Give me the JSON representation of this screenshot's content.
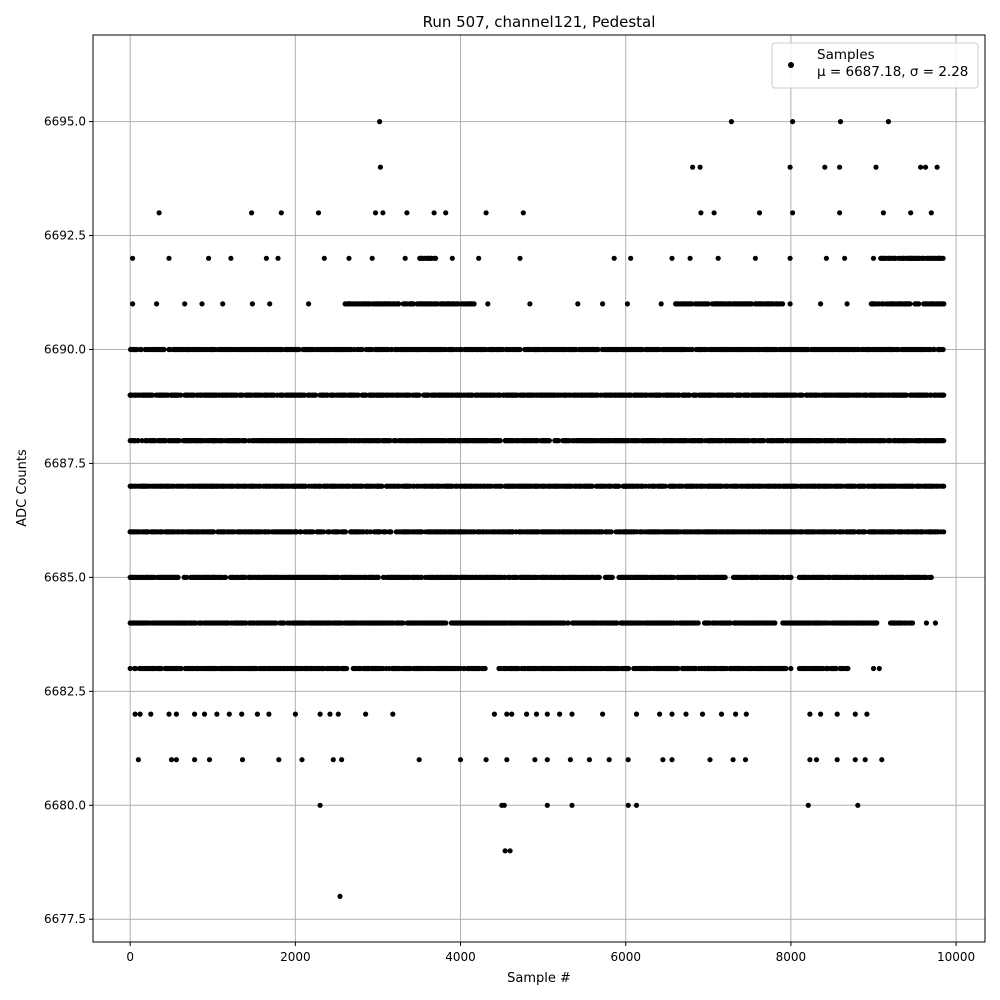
{
  "chart_data": {
    "type": "scatter",
    "title": "Run 507, channel121, Pedestal",
    "xlabel": "Sample #",
    "ylabel": "ADC Counts",
    "xlim": [
      -450,
      10350
    ],
    "ylim": [
      6677.0,
      6696.9
    ],
    "xticks": [
      0,
      2000,
      4000,
      6000,
      8000,
      10000
    ],
    "yticks": [
      6677.5,
      6680.0,
      6682.5,
      6685.0,
      6687.5,
      6690.0,
      6692.5,
      6695.0
    ],
    "xtick_labels": [
      "0",
      "2000",
      "4000",
      "6000",
      "8000",
      "10000"
    ],
    "ytick_labels": [
      "6677.5",
      "6680.0",
      "6682.5",
      "6685.0",
      "6687.5",
      "6690.0",
      "6692.5",
      "6695.0"
    ],
    "grid": true,
    "legend_position": "top-right",
    "series": [
      {
        "name": "Samples",
        "label_line2": "μ = 6687.18, σ = 2.28",
        "color": "#000000",
        "marker": "circle",
        "description_of_values": "~9850 samples at integer ADC values 6678–6695; dense bands 6684–6689",
        "points": [
          [
            2540,
            6678
          ],
          [
            4540,
            6679
          ],
          [
            4600,
            6679
          ],
          [
            2300,
            6680
          ],
          [
            4500,
            6680
          ],
          [
            4530,
            6680
          ],
          [
            5050,
            6680
          ],
          [
            5350,
            6680
          ],
          [
            6030,
            6680
          ],
          [
            6130,
            6680
          ],
          [
            8210,
            6680
          ],
          [
            8810,
            6680
          ],
          [
            100,
            6681
          ],
          [
            500,
            6681
          ],
          [
            560,
            6681
          ],
          [
            780,
            6681
          ],
          [
            960,
            6681
          ],
          [
            1360,
            6681
          ],
          [
            1800,
            6681
          ],
          [
            2080,
            6681
          ],
          [
            2460,
            6681
          ],
          [
            2560,
            6681
          ],
          [
            3500,
            6681
          ],
          [
            4000,
            6681
          ],
          [
            4310,
            6681
          ],
          [
            4560,
            6681
          ],
          [
            4900,
            6681
          ],
          [
            5050,
            6681
          ],
          [
            5330,
            6681
          ],
          [
            5560,
            6681
          ],
          [
            5800,
            6681
          ],
          [
            6030,
            6681
          ],
          [
            6450,
            6681
          ],
          [
            6560,
            6681
          ],
          [
            7020,
            6681
          ],
          [
            7300,
            6681
          ],
          [
            7450,
            6681
          ],
          [
            8230,
            6681
          ],
          [
            8310,
            6681
          ],
          [
            8560,
            6681
          ],
          [
            8780,
            6681
          ],
          [
            8900,
            6681
          ],
          [
            9100,
            6681
          ],
          [
            60,
            6682
          ],
          [
            120,
            6682
          ],
          [
            250,
            6682
          ],
          [
            470,
            6682
          ],
          [
            560,
            6682
          ],
          [
            780,
            6682
          ],
          [
            900,
            6682
          ],
          [
            1050,
            6682
          ],
          [
            1200,
            6682
          ],
          [
            1350,
            6682
          ],
          [
            1540,
            6682
          ],
          [
            1680,
            6682
          ],
          [
            2000,
            6682
          ],
          [
            2300,
            6682
          ],
          [
            2420,
            6682
          ],
          [
            2520,
            6682
          ],
          [
            2850,
            6682
          ],
          [
            3180,
            6682
          ],
          [
            4410,
            6682
          ],
          [
            4560,
            6682
          ],
          [
            4620,
            6682
          ],
          [
            4800,
            6682
          ],
          [
            4920,
            6682
          ],
          [
            5050,
            6682
          ],
          [
            5200,
            6682
          ],
          [
            5350,
            6682
          ],
          [
            5720,
            6682
          ],
          [
            6130,
            6682
          ],
          [
            6410,
            6682
          ],
          [
            6560,
            6682
          ],
          [
            6730,
            6682
          ],
          [
            6930,
            6682
          ],
          [
            7160,
            6682
          ],
          [
            7330,
            6682
          ],
          [
            7460,
            6682
          ],
          [
            8230,
            6682
          ],
          [
            8360,
            6682
          ],
          [
            8560,
            6682
          ],
          [
            8780,
            6682
          ],
          [
            8920,
            6682
          ],
          [
            9000,
            6683
          ],
          [
            9070,
            6683
          ],
          [
            9640,
            6684
          ],
          [
            9750,
            6684
          ],
          [
            8600,
            6695
          ],
          [
            9180,
            6695
          ],
          [
            3020,
            6695
          ],
          [
            7280,
            6695
          ],
          [
            8020,
            6695
          ],
          [
            3030,
            6694
          ],
          [
            6810,
            6694
          ],
          [
            6900,
            6694
          ],
          [
            7990,
            6694
          ],
          [
            8410,
            6694
          ],
          [
            8590,
            6694
          ],
          [
            9030,
            6694
          ],
          [
            9570,
            6694
          ],
          [
            9630,
            6694
          ],
          [
            9770,
            6694
          ],
          [
            350,
            6693
          ],
          [
            1470,
            6693
          ],
          [
            1830,
            6693
          ],
          [
            2280,
            6693
          ],
          [
            2970,
            6693
          ],
          [
            3060,
            6693
          ],
          [
            3350,
            6693
          ],
          [
            3680,
            6693
          ],
          [
            3820,
            6693
          ],
          [
            4310,
            6693
          ],
          [
            4760,
            6693
          ],
          [
            6910,
            6693
          ],
          [
            7070,
            6693
          ],
          [
            7620,
            6693
          ],
          [
            8020,
            6693
          ],
          [
            8590,
            6693
          ],
          [
            9120,
            6693
          ],
          [
            9450,
            6693
          ],
          [
            9700,
            6693
          ],
          [
            30,
            6692
          ],
          [
            470,
            6692
          ],
          [
            950,
            6692
          ],
          [
            1220,
            6692
          ],
          [
            1650,
            6692
          ],
          [
            1790,
            6692
          ],
          [
            2350,
            6692
          ],
          [
            2650,
            6692
          ],
          [
            2930,
            6692
          ],
          [
            3330,
            6692
          ],
          [
            3650,
            6692
          ],
          [
            3900,
            6692
          ],
          [
            4220,
            6692
          ],
          [
            4720,
            6692
          ],
          [
            5860,
            6692
          ],
          [
            6060,
            6692
          ],
          [
            6560,
            6692
          ],
          [
            6780,
            6692
          ],
          [
            7120,
            6692
          ],
          [
            7570,
            6692
          ],
          [
            7990,
            6692
          ],
          [
            8430,
            6692
          ],
          [
            8650,
            6692
          ],
          [
            9000,
            6692
          ],
          [
            9450,
            6692
          ],
          [
            9800,
            6692
          ],
          [
            30,
            6691
          ],
          [
            320,
            6691
          ],
          [
            660,
            6691
          ],
          [
            870,
            6691
          ],
          [
            1120,
            6691
          ],
          [
            1480,
            6691
          ],
          [
            1690,
            6691
          ],
          [
            2160,
            6691
          ],
          [
            2650,
            6691
          ],
          [
            3050,
            6691
          ],
          [
            3400,
            6691
          ],
          [
            3850,
            6691
          ],
          [
            4100,
            6691
          ],
          [
            4330,
            6691
          ],
          [
            4840,
            6691
          ],
          [
            5420,
            6691
          ],
          [
            5720,
            6691
          ],
          [
            6020,
            6691
          ],
          [
            6430,
            6691
          ],
          [
            6800,
            6691
          ],
          [
            7100,
            6691
          ],
          [
            7570,
            6691
          ],
          [
            7990,
            6691
          ],
          [
            8360,
            6691
          ],
          [
            8680,
            6691
          ],
          [
            9000,
            6691
          ],
          [
            9400,
            6691
          ],
          [
            9800,
            6691
          ],
          [
            50,
            6690
          ],
          [
            400,
            6690
          ],
          [
            800,
            6690
          ],
          [
            1150,
            6690
          ],
          [
            1500,
            6690
          ],
          [
            2000,
            6690
          ],
          [
            2500,
            6690
          ],
          [
            3000,
            6690
          ],
          [
            3500,
            6690
          ],
          [
            4000,
            6690
          ],
          [
            4450,
            6690
          ],
          [
            4900,
            6690
          ],
          [
            5350,
            6690
          ],
          [
            5800,
            6690
          ],
          [
            6250,
            6690
          ],
          [
            6700,
            6690
          ],
          [
            7200,
            6690
          ],
          [
            7700,
            6690
          ],
          [
            8200,
            6690
          ],
          [
            8700,
            6690
          ],
          [
            9200,
            6690
          ],
          [
            9800,
            6690
          ],
          [
            0,
            6689
          ],
          [
            500,
            6689
          ],
          [
            1000,
            6689
          ],
          [
            2000,
            6689
          ],
          [
            3000,
            6689
          ],
          [
            4000,
            6689
          ],
          [
            5000,
            6689
          ],
          [
            6000,
            6689
          ],
          [
            7000,
            6689
          ],
          [
            8000,
            6689
          ],
          [
            9000,
            6689
          ],
          [
            9850,
            6689
          ],
          [
            0,
            6688
          ],
          [
            1000,
            6688
          ],
          [
            2000,
            6688
          ],
          [
            3000,
            6688
          ],
          [
            4000,
            6688
          ],
          [
            5000,
            6688
          ],
          [
            6000,
            6688
          ],
          [
            7000,
            6688
          ],
          [
            8000,
            6688
          ],
          [
            9000,
            6688
          ],
          [
            9850,
            6688
          ],
          [
            0,
            6687
          ],
          [
            1000,
            6687
          ],
          [
            2000,
            6687
          ],
          [
            3000,
            6687
          ],
          [
            4000,
            6687
          ],
          [
            5000,
            6687
          ],
          [
            6000,
            6687
          ],
          [
            7000,
            6687
          ],
          [
            8000,
            6687
          ],
          [
            9000,
            6687
          ],
          [
            9850,
            6687
          ],
          [
            0,
            6686
          ],
          [
            1000,
            6686
          ],
          [
            2000,
            6686
          ],
          [
            3000,
            6686
          ],
          [
            4000,
            6686
          ],
          [
            5000,
            6686
          ],
          [
            6000,
            6686
          ],
          [
            7000,
            6686
          ],
          [
            8000,
            6686
          ],
          [
            9000,
            6686
          ],
          [
            9850,
            6686
          ],
          [
            0,
            6685
          ],
          [
            1000,
            6685
          ],
          [
            2000,
            6685
          ],
          [
            3000,
            6685
          ],
          [
            4000,
            6685
          ],
          [
            5000,
            6685
          ],
          [
            6000,
            6685
          ],
          [
            7000,
            6685
          ],
          [
            8000,
            6685
          ],
          [
            9000,
            6685
          ],
          [
            9700,
            6685
          ],
          [
            0,
            6684
          ],
          [
            1000,
            6684
          ],
          [
            2000,
            6684
          ],
          [
            3000,
            6684
          ],
          [
            4000,
            6684
          ],
          [
            5000,
            6684
          ],
          [
            6000,
            6684
          ],
          [
            7000,
            6684
          ],
          [
            8000,
            6684
          ],
          [
            9000,
            6684
          ],
          [
            0,
            6683
          ],
          [
            1000,
            6683
          ],
          [
            2000,
            6683
          ],
          [
            3000,
            6683
          ],
          [
            4000,
            6683
          ],
          [
            5000,
            6683
          ],
          [
            6000,
            6683
          ],
          [
            7000,
            6683
          ],
          [
            8000,
            6683
          ],
          [
            8500,
            6683
          ]
        ],
        "band_occupancy": {
          "6683": [
            [
              50,
              2620
            ],
            [
              2700,
              4300
            ],
            [
              4400,
              7950
            ],
            [
              8100,
              8700
            ]
          ],
          "6684": [
            [
              0,
              6880
            ],
            [
              6950,
              7820
            ],
            [
              7900,
              9050
            ],
            [
              9170,
              9480
            ]
          ],
          "6685": [
            [
              0,
              7200
            ],
            [
              7300,
              8000
            ],
            [
              8100,
              9700
            ]
          ],
          "6686": [
            [
              0,
              9850
            ]
          ],
          "6687": [
            [
              0,
              9850
            ]
          ],
          "6688": [
            [
              0,
              9850
            ]
          ],
          "6689": [
            [
              0,
              9850
            ]
          ],
          "6690": [
            [
              0,
              9850
            ]
          ],
          "6691": [
            [
              2600,
              4200
            ],
            [
              6600,
              7900
            ],
            [
              8970,
              9850
            ]
          ],
          "6692": [
            [
              3500,
              3700
            ],
            [
              9060,
              9850
            ]
          ]
        }
      }
    ]
  }
}
